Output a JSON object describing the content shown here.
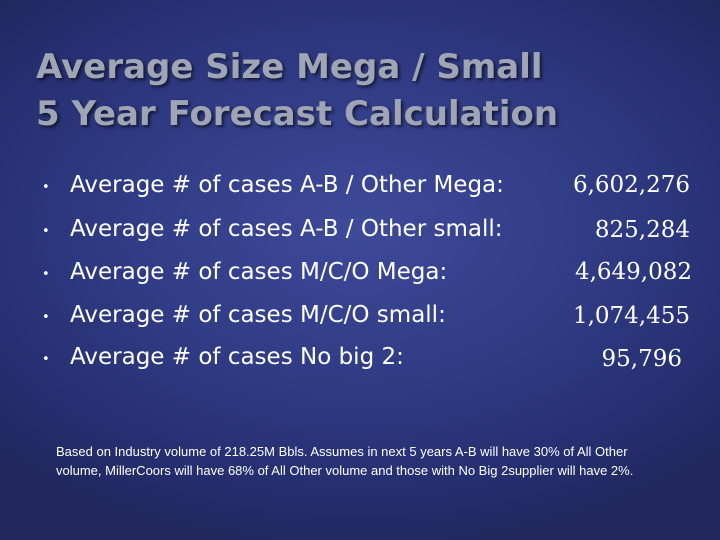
{
  "slide": {
    "title_line1": "Average Size Mega / Small",
    "title_line2": "5 Year Forecast Calculation",
    "bullet_glyph": "•",
    "rows": [
      {
        "label": "Average # of cases A-B / Other Mega:",
        "value": "6,602,276"
      },
      {
        "label": "Average # of cases A-B / Other small:",
        "value": "825,284"
      },
      {
        "label": "Average # of cases M/C/O Mega:",
        "value": "4,649,082"
      },
      {
        "label": "Average # of cases M/C/O small:",
        "value": "1,074,455"
      },
      {
        "label": "Average # of cases No big 2:",
        "value": "95,796"
      }
    ],
    "footnote": "Based on Industry volume of 218.25M Bbls. Assumes in next 5 years A-B will have 30% of All Other volume, MillerCoors will have 68% of All Other volume and those with No Big 2supplier will have 2%."
  },
  "colors": {
    "background": "#313c86",
    "title": "#9fa5b4",
    "text": "#ffffff"
  }
}
